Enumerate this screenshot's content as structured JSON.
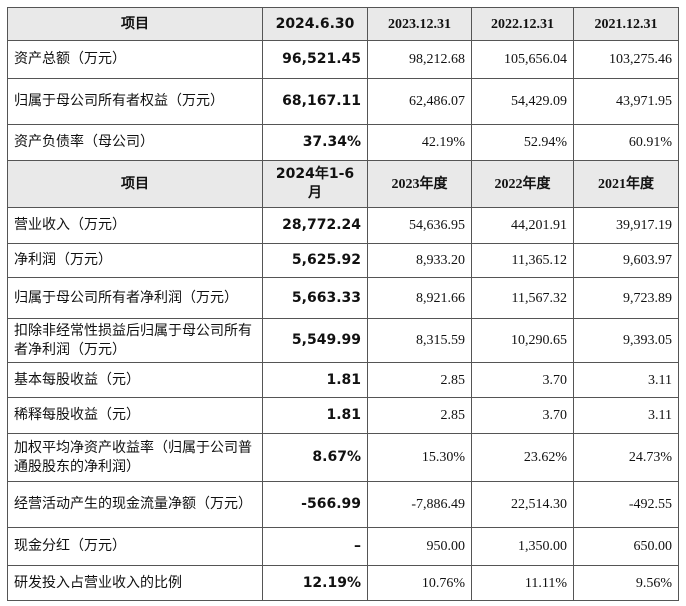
{
  "table": {
    "sections": [
      {
        "header": [
          "项目",
          "2024.6.30",
          "2023.12.31",
          "2022.12.31",
          "2021.12.31"
        ],
        "rows": [
          [
            "资产总额（万元）",
            "96,521.45",
            "98,212.68",
            "105,656.04",
            "103,275.46"
          ],
          [
            "归属于母公司所有者权益（万元）",
            "68,167.11",
            "62,486.07",
            "54,429.09",
            "43,971.95"
          ],
          [
            "资产负债率（母公司）",
            "37.34%",
            "42.19%",
            "52.94%",
            "60.91%"
          ]
        ]
      },
      {
        "header": [
          "项目",
          "2024年1-6月",
          "2023年度",
          "2022年度",
          "2021年度"
        ],
        "rows": [
          [
            "营业收入（万元）",
            "28,772.24",
            "54,636.95",
            "44,201.91",
            "39,917.19"
          ],
          [
            "净利润（万元）",
            "5,625.92",
            "8,933.20",
            "11,365.12",
            "9,603.97"
          ],
          [
            "归属于母公司所有者净利润（万元）",
            "5,663.33",
            "8,921.66",
            "11,567.32",
            "9,723.89"
          ],
          [
            "扣除非经常性损益后归属于母公司所有者净利润（万元）",
            "5,549.99",
            "8,315.59",
            "10,290.65",
            "9,393.05"
          ],
          [
            "基本每股收益（元）",
            "1.81",
            "2.85",
            "3.70",
            "3.11"
          ],
          [
            "稀释每股收益（元）",
            "1.81",
            "2.85",
            "3.70",
            "3.11"
          ],
          [
            "加权平均净资产收益率（归属于公司普通股股东的净利润）",
            "8.67%",
            "15.30%",
            "23.62%",
            "24.73%"
          ],
          [
            "经营活动产生的现金流量净额（万元）",
            "-566.99",
            "-7,886.49",
            "22,514.30",
            "-492.55"
          ],
          [
            "现金分红（万元）",
            "–",
            "950.00",
            "1,350.00",
            "650.00"
          ],
          [
            "研发投入占营业收入的比例",
            "12.19%",
            "10.76%",
            "11.11%",
            "9.56%"
          ]
        ]
      }
    ]
  }
}
